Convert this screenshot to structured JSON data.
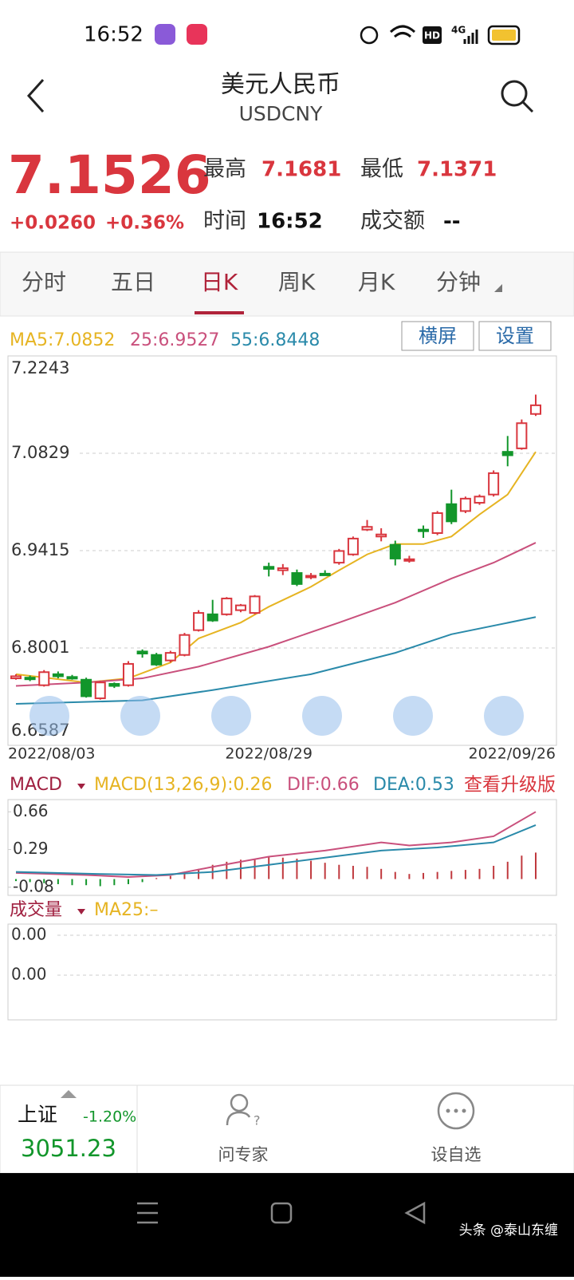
{
  "status_bar": {
    "time": "16:52",
    "hd": "HD",
    "network": "4G"
  },
  "header": {
    "title": "美元人民币",
    "symbol": "USDCNY"
  },
  "quote": {
    "price": "7.1526",
    "change": "+0.0260",
    "change_pct": "+0.36%",
    "high_label": "最高",
    "high": "7.1681",
    "low_label": "最低",
    "low": "7.1371",
    "time_label": "时间",
    "time": "16:52",
    "turnover_label": "成交额",
    "turnover": "--"
  },
  "tabs": {
    "items": [
      "分时",
      "五日",
      "日K",
      "周K",
      "月K",
      "分钟"
    ],
    "active": 2
  },
  "buttons": [
    "横屏",
    "设置"
  ],
  "chart_data": [
    {
      "type": "candlestick",
      "categories": [
        "2022/08/03",
        null,
        null,
        null,
        null,
        null,
        null,
        null,
        null,
        null,
        null,
        null,
        null,
        null,
        null,
        null,
        null,
        null,
        "2022/08/29",
        null,
        null,
        null,
        null,
        null,
        null,
        null,
        null,
        null,
        null,
        null,
        null,
        null,
        null,
        null,
        null,
        null,
        null,
        "2022/09/26"
      ],
      "open": [
        6.756,
        6.757,
        6.746,
        6.762,
        6.758,
        6.754,
        6.727,
        6.748,
        6.746,
        6.795,
        6.79,
        6.782,
        6.79,
        6.826,
        6.849,
        6.849,
        6.855,
        6.851,
        6.918,
        6.913,
        6.909,
        6.903,
        6.908,
        6.924,
        6.936,
        6.972,
        6.962,
        6.95,
        6.927,
        6.972,
        6.967,
        7.009,
        6.999,
        7.011,
        7.023,
        7.085,
        7.09,
        7.14
      ],
      "high": [
        6.762,
        6.76,
        6.768,
        6.766,
        6.761,
        6.757,
        6.752,
        6.75,
        6.781,
        6.798,
        6.793,
        6.796,
        6.822,
        6.855,
        6.87,
        6.874,
        6.864,
        6.877,
        6.924,
        6.922,
        6.914,
        6.909,
        6.913,
        6.944,
        6.962,
        6.986,
        6.974,
        6.956,
        6.934,
        6.978,
        6.999,
        7.03,
        7.02,
        7.023,
        7.058,
        7.108,
        7.132,
        7.1681
      ],
      "low": [
        6.754,
        6.752,
        6.744,
        6.756,
        6.754,
        6.728,
        6.725,
        6.742,
        6.744,
        6.786,
        6.774,
        6.779,
        6.788,
        6.824,
        6.838,
        6.847,
        6.852,
        6.849,
        6.904,
        6.906,
        6.89,
        6.9,
        6.905,
        6.921,
        6.934,
        6.97,
        6.955,
        6.92,
        6.924,
        6.96,
        6.964,
        6.98,
        6.996,
        7.008,
        7.02,
        7.064,
        7.088,
        7.1371
      ],
      "close": [
        6.759,
        6.755,
        6.765,
        6.759,
        6.756,
        6.73,
        6.75,
        6.745,
        6.777,
        6.792,
        6.776,
        6.793,
        6.819,
        6.851,
        6.84,
        6.872,
        6.862,
        6.875,
        6.915,
        6.916,
        6.893,
        6.905,
        6.906,
        6.941,
        6.959,
        6.976,
        6.965,
        6.93,
        6.929,
        6.97,
        6.996,
        6.984,
        7.017,
        7.02,
        7.054,
        7.08,
        7.1266,
        7.1526
      ],
      "up_color": "#d9363e",
      "down_color": "#12962b",
      "series": [
        {
          "name": "MA5:7.0852",
          "color": "#e6b422",
          "x": [
            0,
            5,
            8,
            11,
            13,
            16,
            18,
            21,
            23,
            25,
            27,
            29,
            31,
            33,
            35,
            37
          ],
          "values": [
            6.762,
            6.75,
            6.756,
            6.779,
            6.814,
            6.837,
            6.86,
            6.889,
            6.913,
            6.936,
            6.951,
            6.951,
            6.962,
            6.994,
            7.023,
            7.085
          ]
        },
        {
          "name": "25:6.9527",
          "color": "#c9507c",
          "x": [
            0,
            5,
            9,
            13,
            18,
            23,
            27,
            31,
            34,
            37
          ],
          "values": [
            6.745,
            6.75,
            6.756,
            6.773,
            6.802,
            6.837,
            6.866,
            6.901,
            6.924,
            6.953
          ]
        },
        {
          "name": "55:6.8448",
          "color": "#2a8aaa",
          "x": [
            0,
            9,
            14,
            21,
            27,
            31,
            37
          ],
          "values": [
            6.719,
            6.724,
            6.739,
            6.762,
            6.793,
            6.82,
            6.845
          ]
        }
      ],
      "ylim": [
        6.6587,
        7.2243
      ],
      "yticks": [
        6.6587,
        6.8001,
        6.9415,
        7.0829,
        7.2243
      ],
      "grid": true
    },
    {
      "type": "macd",
      "title": "MACD",
      "params": "MACD(13,26,9):0.26",
      "link": "查看升级版",
      "series": [
        {
          "name": "DIF:0.66",
          "color": "#c9507c",
          "x": [
            0,
            5,
            8,
            11,
            14,
            18,
            22,
            26,
            28,
            31,
            34,
            37
          ],
          "values": [
            0.06,
            0.04,
            0.02,
            0.04,
            0.12,
            0.22,
            0.28,
            0.36,
            0.33,
            0.36,
            0.42,
            0.66
          ]
        },
        {
          "name": "DEA:0.53",
          "color": "#2a8aaa",
          "x": [
            0,
            6,
            10,
            14,
            18,
            22,
            26,
            30,
            34,
            37
          ],
          "values": [
            0.07,
            0.05,
            0.04,
            0.07,
            0.14,
            0.21,
            0.28,
            0.31,
            0.36,
            0.53
          ]
        }
      ],
      "histogram": [
        -0.02,
        -0.03,
        -0.04,
        -0.05,
        -0.06,
        -0.06,
        -0.07,
        -0.06,
        -0.05,
        -0.03,
        0.01,
        0.03,
        0.06,
        0.1,
        0.14,
        0.17,
        0.19,
        0.2,
        0.22,
        0.21,
        0.2,
        0.18,
        0.16,
        0.14,
        0.13,
        0.12,
        0.1,
        0.07,
        0.05,
        0.06,
        0.07,
        0.08,
        0.09,
        0.1,
        0.13,
        0.17,
        0.23,
        0.26
      ],
      "up_color": "#c0393e",
      "down_color": "#12962b",
      "ylim": [
        -0.16,
        0.78
      ],
      "yticks": [
        0.66,
        0.29,
        -0.08
      ]
    },
    {
      "type": "volume",
      "title": "成交量",
      "ma_label": "MA25:–",
      "yticks": [
        {
          "value": 0,
          "label": "0.00"
        },
        {
          "value": 0,
          "label": "0.00"
        }
      ]
    }
  ],
  "bottom_bar": {
    "index_name": "上证",
    "index_change": "-1.20%",
    "index_value": "3051.23",
    "actions": [
      "问专家",
      "设自选"
    ]
  },
  "watermark": "头条 @泰山东缠"
}
